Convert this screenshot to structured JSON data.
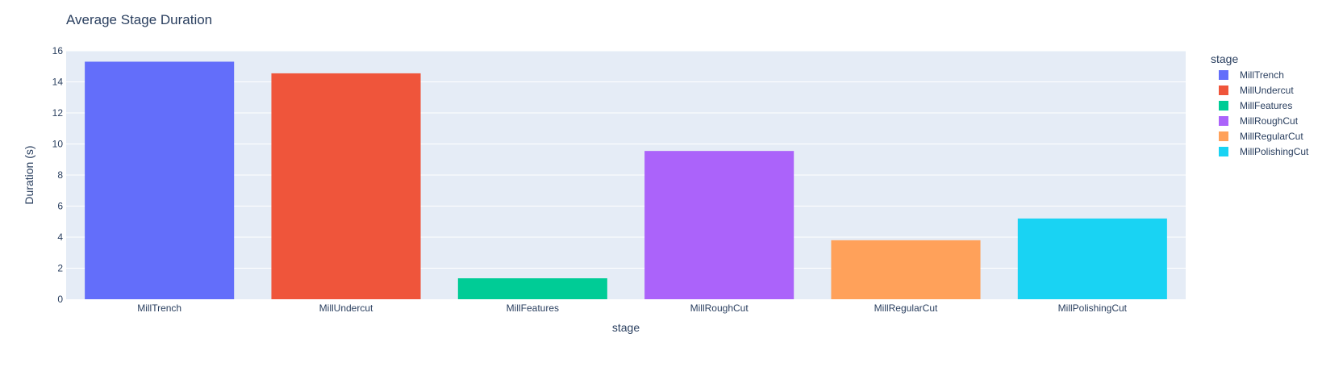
{
  "colors": {
    "plot_background": "#E5ECF6",
    "gridline": "#FFFFFF",
    "text": "#2A3F5F"
  },
  "chart_data": {
    "type": "bar",
    "title": "Average Stage Duration",
    "xlabel": "stage",
    "ylabel": "Duration (s)",
    "categories": [
      "MillTrench",
      "MillUndercut",
      "MillFeatures",
      "MillRoughCut",
      "MillRegularCut",
      "MillPolishingCut"
    ],
    "values": [
      15.3,
      14.55,
      1.35,
      9.55,
      3.8,
      5.2
    ],
    "colors": [
      "#636EFA",
      "#EF553B",
      "#00CC96",
      "#AB63FA",
      "#FFA15A",
      "#19D3F3"
    ],
    "ylim": [
      0,
      16
    ],
    "yticks": [
      0,
      2,
      4,
      6,
      8,
      10,
      12,
      14,
      16
    ],
    "grid": true,
    "legend": {
      "title": "stage",
      "placement": "right",
      "entries": [
        "MillTrench",
        "MillUndercut",
        "MillFeatures",
        "MillRoughCut",
        "MillRegularCut",
        "MillPolishingCut"
      ]
    }
  }
}
